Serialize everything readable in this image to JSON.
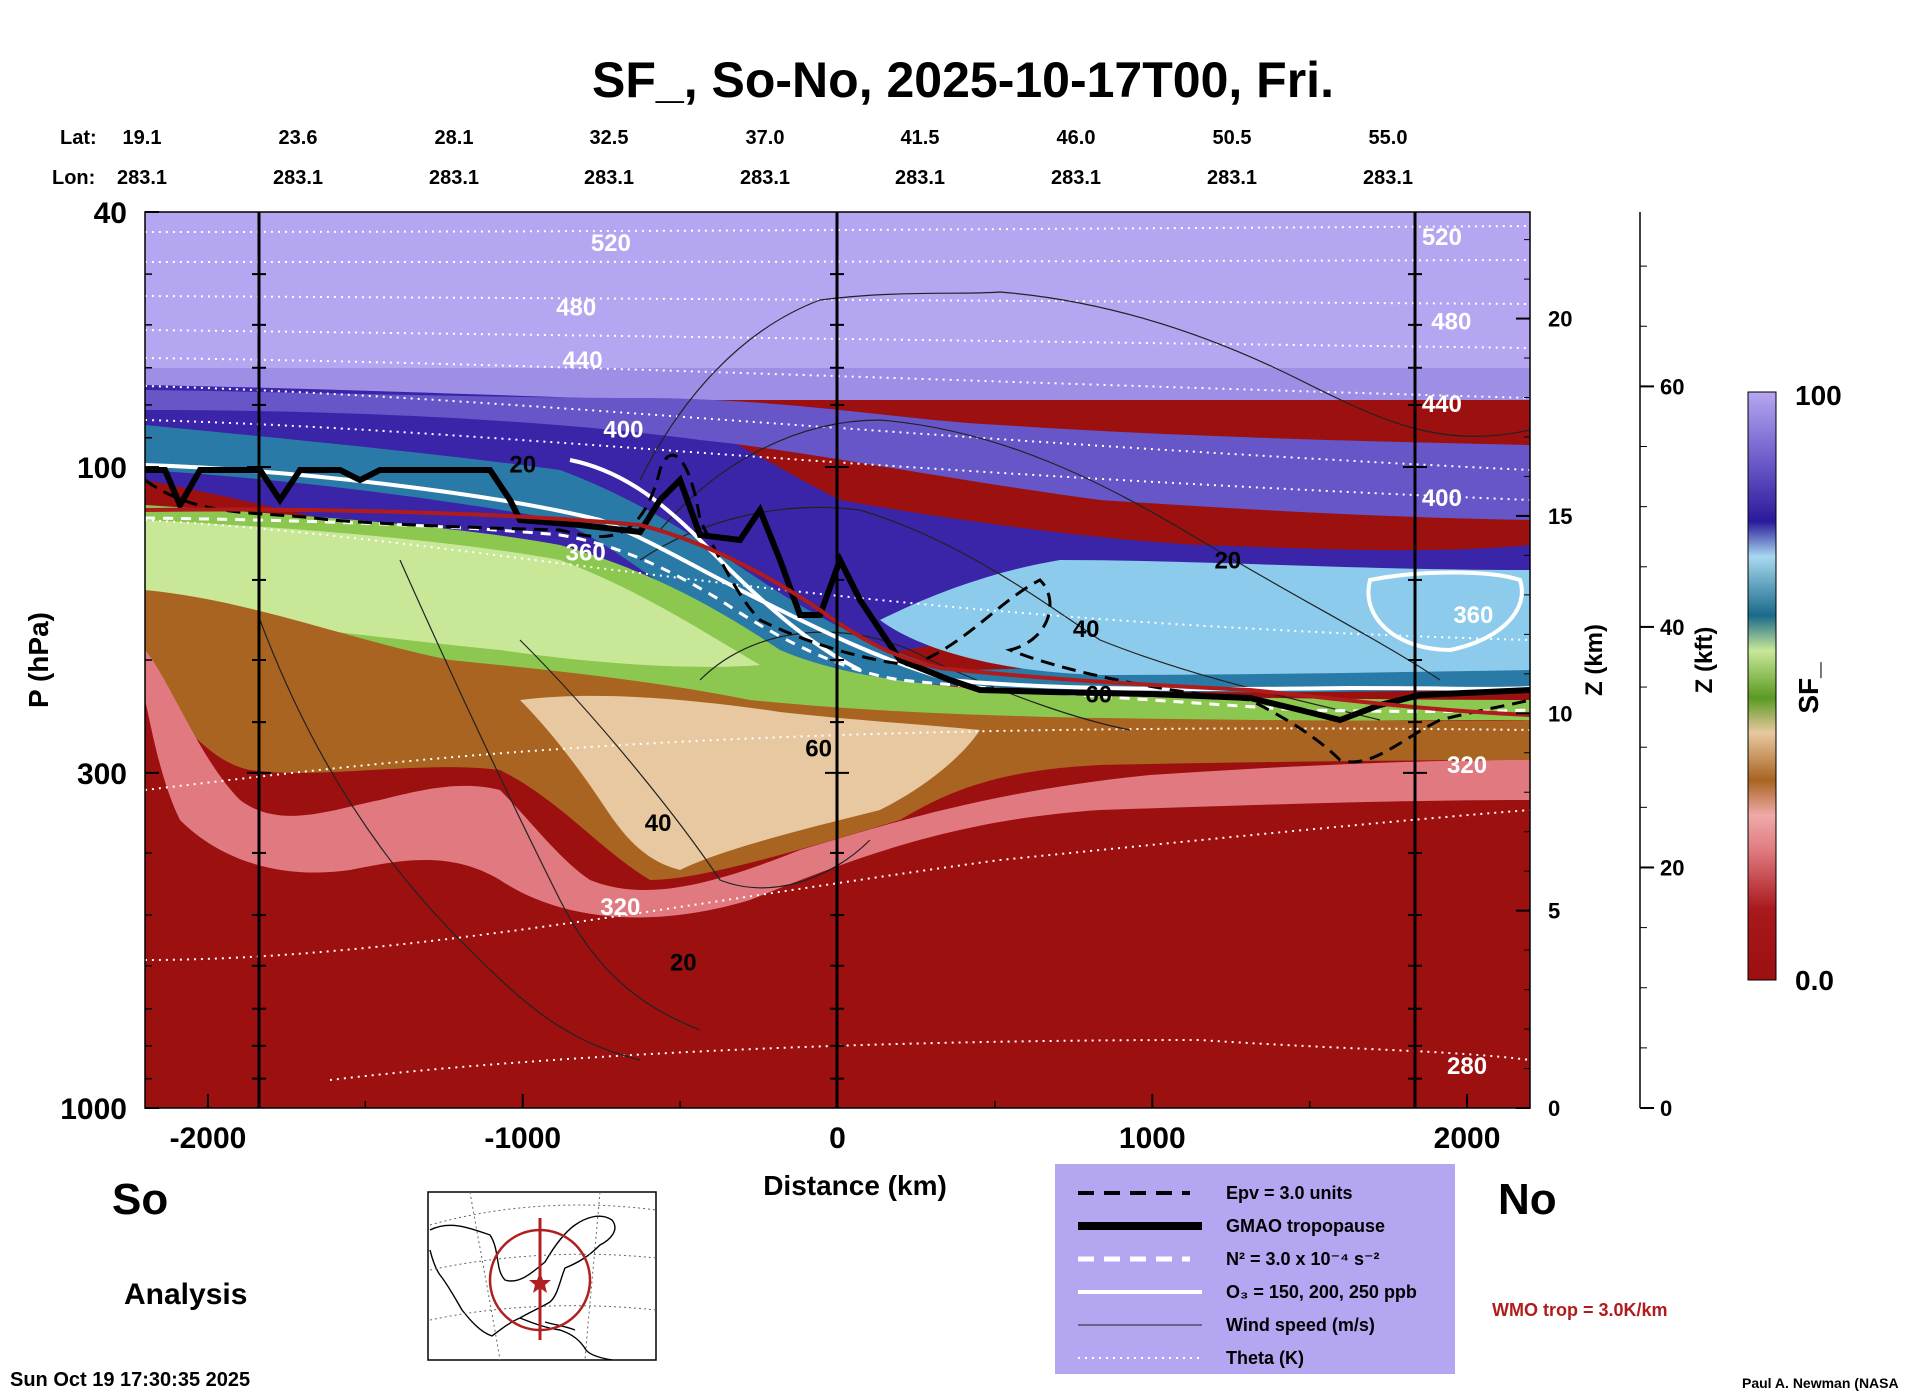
{
  "chart_data": {
    "type": "heatmap",
    "title": "SF_, So-No, 2025-10-17T00, Fri.",
    "xlabel": "Distance (km)",
    "ylabel": "P (hPa)",
    "y2label": "Z (km)",
    "y3label": "Z (kft)",
    "colorbar_label": "SF_",
    "xlim": [
      -2200,
      2200
    ],
    "ylim_hpa": [
      1000,
      40
    ],
    "x_ticks": [
      {
        "label": "-2000",
        "value": -2000
      },
      {
        "label": "-1000",
        "value": -1000
      },
      {
        "label": "0",
        "value": 0
      },
      {
        "label": "1000",
        "value": 1000
      },
      {
        "label": "2000",
        "value": 2000
      }
    ],
    "p_ticks": [
      {
        "label": "40",
        "value": 40
      },
      {
        "label": "100",
        "value": 100
      },
      {
        "label": "300",
        "value": 300
      },
      {
        "label": "1000",
        "value": 1000
      }
    ],
    "z_km_ticks": [
      {
        "label": "20",
        "value": 20
      },
      {
        "label": "15",
        "value": 15
      },
      {
        "label": "10",
        "value": 10
      },
      {
        "label": "5",
        "value": 5
      },
      {
        "label": "0",
        "value": 0
      }
    ],
    "z_kft_ticks": [
      {
        "label": "60",
        "value": 60
      },
      {
        "label": "40",
        "value": 40
      },
      {
        "label": "20",
        "value": 20
      },
      {
        "label": "0",
        "value": 0
      }
    ],
    "colorbar_range": {
      "min_label": "0.0",
      "max_label": "100",
      "min": 0,
      "max": 100
    },
    "lat_label": "Lat:",
    "lon_label": "Lon:",
    "lat_values": [
      "19.1",
      "23.6",
      "28.1",
      "32.5",
      "37.0",
      "41.5",
      "46.0",
      "50.5",
      "55.0"
    ],
    "lon_values": [
      "283.1",
      "283.1",
      "283.1",
      "283.1",
      "283.1",
      "283.1",
      "283.1",
      "283.1",
      "283.1"
    ],
    "theta_labels": [
      {
        "text": "520",
        "x": -720,
        "p": 46
      },
      {
        "text": "480",
        "x": -830,
        "p": 58
      },
      {
        "text": "440",
        "x": -810,
        "p": 70
      },
      {
        "text": "400",
        "x": -680,
        "p": 90
      },
      {
        "text": "360",
        "x": -800,
        "p": 140
      },
      {
        "text": "320",
        "x": -690,
        "p": 500
      },
      {
        "text": "520",
        "x": 1920,
        "p": 45
      },
      {
        "text": "480",
        "x": 1950,
        "p": 61
      },
      {
        "text": "440",
        "x": 1920,
        "p": 82
      },
      {
        "text": "400",
        "x": 1920,
        "p": 115
      },
      {
        "text": "360",
        "x": 2020,
        "p": 175
      },
      {
        "text": "320",
        "x": 2000,
        "p": 300
      },
      {
        "text": "280",
        "x": 2000,
        "p": 885
      }
    ],
    "wind_labels": [
      {
        "text": "20",
        "x": -1000,
        "p": 102
      },
      {
        "text": "20",
        "x": 1240,
        "p": 144
      },
      {
        "text": "40",
        "x": 790,
        "p": 184
      },
      {
        "text": "60",
        "x": 830,
        "p": 233
      },
      {
        "text": "60",
        "x": -60,
        "p": 283
      },
      {
        "text": "40",
        "x": -570,
        "p": 370
      },
      {
        "text": "20",
        "x": -490,
        "p": 610
      }
    ],
    "side_labels": {
      "south": "So",
      "north": "No",
      "analysis": "Analysis"
    },
    "legend": [
      {
        "label": "Epv = 3.0 units",
        "style": "dashed-black"
      },
      {
        "label": "GMAO tropopause",
        "style": "thick-black"
      },
      {
        "label": "N² = 3.0 x 10⁻⁴ s⁻²",
        "style": "dashed-white"
      },
      {
        "label": "O₃ = 150, 200, 250 ppb",
        "style": "solid-white"
      },
      {
        "label": "Wind speed (m/s)",
        "style": "thin-black"
      },
      {
        "label": "Theta (K)",
        "style": "dotted-white"
      }
    ],
    "wmo_label": "WMO trop = 3.0K/km",
    "timestamp": "Sun Oct 19 17:30:35 2025",
    "credit": "Paul A. Newman (NASA"
  },
  "colors": {
    "background_top": "#b6a6f2",
    "wmo": "#b01c1c",
    "legend_bg": "#b6a6f2",
    "map_circle": "#b02020"
  }
}
